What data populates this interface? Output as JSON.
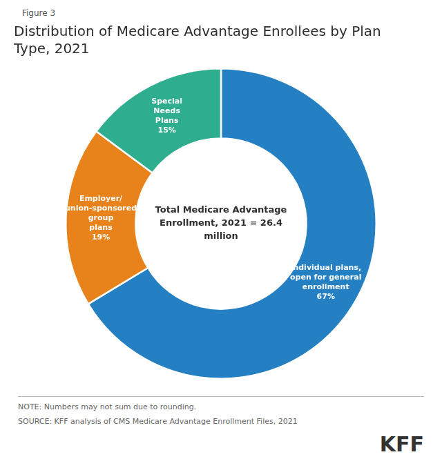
{
  "chart_data": {
    "type": "doughnut",
    "title": "Distribution of Medicare Advantage Enrollees by Plan\nType, 2021",
    "categories": [
      "Individual plans,\nopen for general\nenrollment",
      "Employer/\nunion-sponsored\ngroup\nplans",
      "Special\nNeeds\nPlans"
    ],
    "values": [
      67,
      19,
      15
    ],
    "value_labels": [
      "67%",
      "19%",
      "15%"
    ],
    "colors": [
      "#2480C2",
      "#E8821A",
      "#2EAE8E"
    ],
    "data_labels": true,
    "legend": false,
    "annotations": [
      "Figure 3",
      "Total Medicare Advantage\nEnrollment, 2021 = 26.4\nmillion",
      "NOTE: Numbers may not sum due to rounding.",
      "SOURCE: KFF analysis of CMS Medicare Advantage Enrollment Files, 2021",
      "KFF"
    ]
  }
}
